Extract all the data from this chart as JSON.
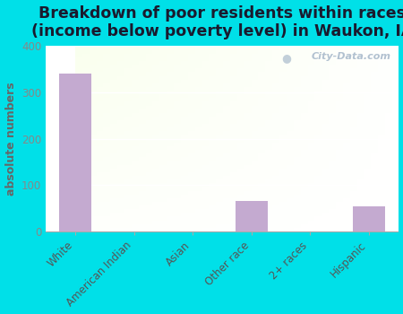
{
  "title": "Breakdown of poor residents within races\n(income below poverty level) in Waukon, IA",
  "categories": [
    "White",
    "American Indian",
    "Asian",
    "Other race",
    "2+ races",
    "Hispanic"
  ],
  "values": [
    340,
    0,
    0,
    65,
    0,
    55
  ],
  "bar_color": "#c4aad0",
  "ylabel": "absolute numbers",
  "ylim": [
    0,
    400
  ],
  "yticks": [
    0,
    100,
    200,
    300,
    400
  ],
  "background_outer": "#00e0e8",
  "watermark": "City-Data.com",
  "title_fontsize": 12.5,
  "ylabel_fontsize": 9,
  "tick_fontsize": 8.5,
  "title_color": "#1a1a2e"
}
